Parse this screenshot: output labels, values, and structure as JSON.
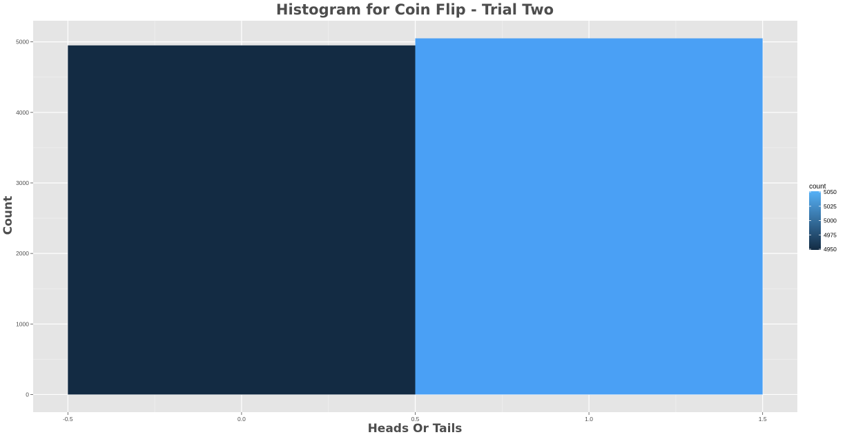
{
  "chart_data": {
    "type": "bar",
    "title": "Histogram for Coin Flip - Trial Two",
    "xlabel": "Heads Or Tails",
    "ylabel": "Count",
    "bins": [
      {
        "xmin": -0.5,
        "xmax": 0.5,
        "value": 4950
      },
      {
        "xmin": 0.5,
        "xmax": 1.5,
        "value": 5050
      }
    ],
    "xlim": [
      -0.6,
      1.6
    ],
    "ylim": [
      -250,
      5300
    ],
    "x_ticks": [
      {
        "value": -0.5,
        "label": "-0.5"
      },
      {
        "value": 0.0,
        "label": "0.0"
      },
      {
        "value": 0.5,
        "label": "0.5"
      },
      {
        "value": 1.0,
        "label": "1.0"
      },
      {
        "value": 1.5,
        "label": "1.5"
      }
    ],
    "y_ticks": [
      {
        "value": 0,
        "label": "0"
      },
      {
        "value": 1000,
        "label": "1000"
      },
      {
        "value": 2000,
        "label": "2000"
      },
      {
        "value": 3000,
        "label": "3000"
      },
      {
        "value": 4000,
        "label": "4000"
      },
      {
        "value": 5000,
        "label": "5000"
      }
    ],
    "grid": true,
    "legend": {
      "title": "count",
      "placement": "right",
      "range": [
        4950,
        5050
      ],
      "low_color": "#132B43",
      "high_color": "#56B1F7",
      "ticks": [
        {
          "value": 4950,
          "label": "4950"
        },
        {
          "value": 4975,
          "label": "4975"
        },
        {
          "value": 5000,
          "label": "5000"
        },
        {
          "value": 5025,
          "label": "5025"
        },
        {
          "value": 5050,
          "label": "5050"
        }
      ]
    },
    "colors": {
      "panel_background": "#E5E5E5",
      "grid_major": "#FFFFFF",
      "grid_minor": "#F2F2F2",
      "bar_low": "#132B43",
      "bar_high": "#4AA0F5"
    }
  }
}
